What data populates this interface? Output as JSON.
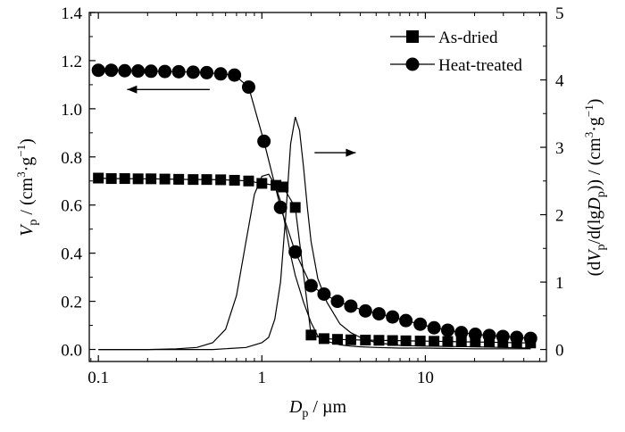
{
  "chart_data": {
    "type": "line",
    "x_scale": "log",
    "xlim": [
      0.088,
      55
    ],
    "ylim_left": [
      -0.05,
      1.4
    ],
    "ylim_right": [
      -0.178,
      5
    ],
    "xlabel": {
      "main": "D",
      "sub": "p",
      "rest": " / µm"
    },
    "ylabel_left": {
      "v": "V",
      "p": "p",
      "open": " / (cm",
      "sup": "3",
      "dot": "·g",
      "sup2": "−1",
      "close": ")"
    },
    "ylabel_right": {
      "open": "(d",
      "v": "V",
      "p": "p",
      "mid": "/d(lg",
      "d": "D",
      "p2": "p",
      "close1": ")) / (cm",
      "sup": "3",
      "dot": "·g",
      "sup2": "−1",
      "close2": ")"
    },
    "x_ticks": [
      {
        "value": 0.1,
        "label": "0.1"
      },
      {
        "value": 1,
        "label": "1"
      },
      {
        "value": 10,
        "label": "10"
      }
    ],
    "y_ticks_left": [
      {
        "value": 0.0,
        "label": "0.0"
      },
      {
        "value": 0.2,
        "label": "0.2"
      },
      {
        "value": 0.4,
        "label": "0.4"
      },
      {
        "value": 0.6,
        "label": "0.6"
      },
      {
        "value": 0.8,
        "label": "0.8"
      },
      {
        "value": 1.0,
        "label": "1.0"
      },
      {
        "value": 1.2,
        "label": "1.2"
      },
      {
        "value": 1.4,
        "label": "1.4"
      }
    ],
    "y_ticks_right": [
      {
        "value": 0,
        "label": "0"
      },
      {
        "value": 1,
        "label": "1"
      },
      {
        "value": 2,
        "label": "2"
      },
      {
        "value": 3,
        "label": "3"
      },
      {
        "value": 4,
        "label": "4"
      },
      {
        "value": 5,
        "label": "5"
      }
    ],
    "legend": {
      "position": "top-right",
      "entries": [
        "As-dried",
        "Heat-treated"
      ]
    },
    "series": [
      {
        "name": "As-dried",
        "axis": "left",
        "marker": "square",
        "x": [
          0.1,
          0.12,
          0.145,
          0.175,
          0.21,
          0.255,
          0.31,
          0.38,
          0.46,
          0.56,
          0.68,
          0.83,
          1.0,
          1.22,
          1.35,
          1.6,
          2.0,
          2.4,
          2.9,
          3.5,
          4.3,
          5.2,
          6.3,
          7.6,
          9.3,
          11.3,
          13.7,
          16.6,
          20.2,
          24.6,
          29.8,
          36.2,
          44
        ],
        "y": [
          0.712,
          0.71,
          0.71,
          0.709,
          0.709,
          0.708,
          0.707,
          0.706,
          0.706,
          0.705,
          0.703,
          0.7,
          0.69,
          0.682,
          0.675,
          0.59,
          0.06,
          0.045,
          0.042,
          0.04,
          0.039,
          0.038,
          0.037,
          0.036,
          0.035,
          0.034,
          0.033,
          0.032,
          0.031,
          0.03,
          0.029,
          0.028,
          0.027
        ]
      },
      {
        "name": "Heat-treated",
        "axis": "left",
        "marker": "circle",
        "x": [
          0.1,
          0.12,
          0.145,
          0.175,
          0.21,
          0.255,
          0.31,
          0.38,
          0.46,
          0.56,
          0.68,
          0.83,
          1.03,
          1.3,
          1.6,
          2.0,
          2.4,
          2.9,
          3.5,
          4.3,
          5.2,
          6.3,
          7.6,
          9.3,
          11.3,
          13.7,
          16.6,
          20.2,
          24.6,
          29.8,
          36.2,
          44
        ],
        "y": [
          1.16,
          1.16,
          1.158,
          1.157,
          1.156,
          1.155,
          1.154,
          1.152,
          1.15,
          1.145,
          1.14,
          1.09,
          0.865,
          0.59,
          0.405,
          0.265,
          0.23,
          0.2,
          0.18,
          0.16,
          0.148,
          0.135,
          0.12,
          0.105,
          0.09,
          0.08,
          0.07,
          0.063,
          0.058,
          0.054,
          0.05,
          0.046
        ]
      },
      {
        "name": "",
        "axis": "right",
        "marker": "none",
        "x": [
          0.1,
          0.2,
          0.3,
          0.4,
          0.5,
          0.6,
          0.7,
          0.8,
          0.9,
          1.0,
          1.1,
          1.2,
          1.3,
          1.4,
          1.5,
          1.6,
          1.8,
          2.0,
          2.2,
          2.5,
          3.0,
          3.5,
          4.0,
          5.0,
          7.0,
          10.0,
          20.0,
          30.0,
          44.0
        ],
        "y": [
          0.0,
          0.0,
          0.01,
          0.03,
          0.1,
          0.3,
          0.8,
          1.6,
          2.3,
          2.57,
          2.6,
          2.45,
          2.2,
          1.8,
          1.4,
          1.1,
          0.7,
          0.4,
          0.2,
          0.12,
          0.07,
          0.05,
          0.04,
          0.03,
          0.02,
          0.02,
          0.01,
          0.01,
          0.01
        ]
      },
      {
        "name": "",
        "axis": "right",
        "marker": "none",
        "x": [
          0.1,
          0.5,
          0.8,
          1.0,
          1.1,
          1.2,
          1.3,
          1.4,
          1.5,
          1.6,
          1.7,
          1.8,
          1.9,
          2.0,
          2.2,
          2.5,
          3.0,
          3.5,
          4.0,
          5.0,
          7.0,
          10.0,
          20.0,
          30.0,
          44.0
        ],
        "y": [
          0.0,
          0.0,
          0.03,
          0.1,
          0.18,
          0.45,
          1.0,
          2.0,
          3.05,
          3.45,
          3.25,
          2.7,
          2.1,
          1.6,
          1.05,
          0.7,
          0.38,
          0.25,
          0.18,
          0.1,
          0.06,
          0.05,
          0.04,
          0.03,
          0.02
        ]
      }
    ],
    "annotations": [
      {
        "type": "arrow",
        "direction": "left",
        "axis": "left",
        "x_start": 0.48,
        "x_end": 0.15,
        "y": 1.08
      },
      {
        "type": "arrow",
        "direction": "right",
        "axis": "right",
        "x_start": 2.1,
        "x_end": 3.75,
        "y": 2.92
      }
    ]
  }
}
